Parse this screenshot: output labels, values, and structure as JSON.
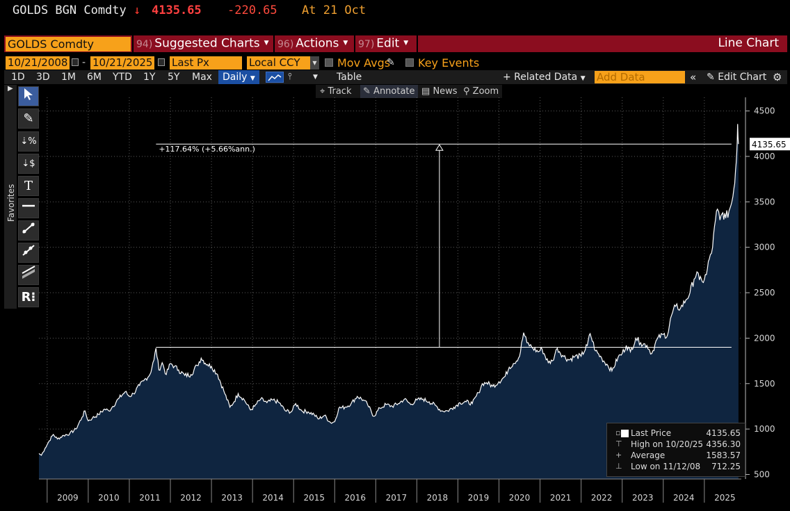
{
  "ticker": {
    "symbol": "GOLDS BGN Comdty",
    "arrow": "↓",
    "price": "4135.65",
    "change": "-220.65",
    "at": "At 21 Oct"
  },
  "menubar": {
    "security": "GOLDS Comdty",
    "menus": [
      {
        "num": "94)",
        "label": "Suggested Charts"
      },
      {
        "num": "96)",
        "label": "Actions"
      },
      {
        "num": "97)",
        "label": "Edit"
      }
    ],
    "chart_type": "Line Chart"
  },
  "daterow": {
    "start_date": "10/21/2008",
    "end_date": "10/21/2025",
    "field": "Last Px",
    "currency": "Local CCY",
    "mov_avgs": "Mov Avgs",
    "key_events": "Key Events"
  },
  "toolbar": {
    "periods": [
      "1D",
      "3D",
      "1M",
      "6M",
      "YTD",
      "1Y",
      "5Y",
      "Max"
    ],
    "frequency": "Daily",
    "table": "Table",
    "related_data": "+ Related Data",
    "add_data_placeholder": "Add Data",
    "edit_chart": "Edit Chart"
  },
  "subtoolbar": {
    "track": "Track",
    "annotate": "Annotate",
    "news": "News",
    "zoom": "Zoom"
  },
  "left_tools": {
    "favorites": "Favorites",
    "tools": [
      "pointer-icon",
      "pen-icon",
      "percent-measure-icon",
      "dollar-measure-icon",
      "text-icon",
      "horizontal-line-icon",
      "trend-line-icon",
      "ray-line-icon",
      "channel-icon",
      "retracement-icon"
    ]
  },
  "legend": {
    "last_price_label": "Last Price",
    "last_price_value": "4135.65",
    "high_label": "High on 10/20/25",
    "high_value": "4356.30",
    "average_label": "Average",
    "average_value": "1583.57",
    "low_label": "Low on 11/12/08",
    "low_value": "712.25"
  },
  "colors": {
    "accent_orange": "#f7a11a",
    "menu_red": "#8b0d1f",
    "down_red": "#ff4040",
    "area_fill": "#0f2540",
    "line": "#ffffff"
  },
  "chart_data": {
    "type": "area",
    "title": "",
    "xlabel": "",
    "ylabel": "",
    "ylim": [
      450,
      4650
    ],
    "yticks": [
      500,
      1000,
      1500,
      2000,
      2500,
      3000,
      3500,
      4000,
      4500
    ],
    "xlim": [
      2008.8,
      2025.9
    ],
    "xticks": [
      {
        "x": 2009.5,
        "label": "2009"
      },
      {
        "x": 2010.5,
        "label": "2010"
      },
      {
        "x": 2011.5,
        "label": "2011"
      },
      {
        "x": 2012.5,
        "label": "2012"
      },
      {
        "x": 2013.5,
        "label": "2013"
      },
      {
        "x": 2014.5,
        "label": "2014"
      },
      {
        "x": 2015.5,
        "label": "2015"
      },
      {
        "x": 2016.5,
        "label": "2016"
      },
      {
        "x": 2017.5,
        "label": "2017"
      },
      {
        "x": 2018.5,
        "label": "2018"
      },
      {
        "x": 2019.5,
        "label": "2019"
      },
      {
        "x": 2020.5,
        "label": "2020"
      },
      {
        "x": 2021.5,
        "label": "2021"
      },
      {
        "x": 2022.5,
        "label": "2022"
      },
      {
        "x": 2023.5,
        "label": "2023"
      },
      {
        "x": 2024.5,
        "label": "2024"
      },
      {
        "x": 2025.5,
        "label": "2025"
      }
    ],
    "last_price_label": "4135.65",
    "series": [
      {
        "name": "Last Price",
        "points": [
          [
            2008.8,
            730
          ],
          [
            2008.86,
            712
          ],
          [
            2008.95,
            790
          ],
          [
            2009.05,
            870
          ],
          [
            2009.15,
            940
          ],
          [
            2009.25,
            890
          ],
          [
            2009.4,
            930
          ],
          [
            2009.55,
            950
          ],
          [
            2009.7,
            1000
          ],
          [
            2009.85,
            1130
          ],
          [
            2009.92,
            1200
          ],
          [
            2010.0,
            1090
          ],
          [
            2010.1,
            1120
          ],
          [
            2010.25,
            1160
          ],
          [
            2010.4,
            1220
          ],
          [
            2010.5,
            1200
          ],
          [
            2010.6,
            1250
          ],
          [
            2010.75,
            1340
          ],
          [
            2010.9,
            1410
          ],
          [
            2011.0,
            1360
          ],
          [
            2011.1,
            1390
          ],
          [
            2011.25,
            1480
          ],
          [
            2011.35,
            1530
          ],
          [
            2011.5,
            1600
          ],
          [
            2011.6,
            1760
          ],
          [
            2011.65,
            1890
          ],
          [
            2011.72,
            1650
          ],
          [
            2011.8,
            1730
          ],
          [
            2011.9,
            1600
          ],
          [
            2012.0,
            1720
          ],
          [
            2012.1,
            1690
          ],
          [
            2012.2,
            1650
          ],
          [
            2012.35,
            1590
          ],
          [
            2012.5,
            1600
          ],
          [
            2012.65,
            1700
          ],
          [
            2012.75,
            1780
          ],
          [
            2012.9,
            1710
          ],
          [
            2013.0,
            1690
          ],
          [
            2013.15,
            1600
          ],
          [
            2013.3,
            1420
          ],
          [
            2013.45,
            1240
          ],
          [
            2013.55,
            1300
          ],
          [
            2013.65,
            1390
          ],
          [
            2013.8,
            1320
          ],
          [
            2013.95,
            1210
          ],
          [
            2014.05,
            1250
          ],
          [
            2014.2,
            1330
          ],
          [
            2014.35,
            1290
          ],
          [
            2014.5,
            1320
          ],
          [
            2014.65,
            1290
          ],
          [
            2014.8,
            1200
          ],
          [
            2014.95,
            1190
          ],
          [
            2015.05,
            1280
          ],
          [
            2015.2,
            1200
          ],
          [
            2015.35,
            1190
          ],
          [
            2015.5,
            1160
          ],
          [
            2015.6,
            1110
          ],
          [
            2015.75,
            1150
          ],
          [
            2015.9,
            1070
          ],
          [
            2016.0,
            1080
          ],
          [
            2016.1,
            1230
          ],
          [
            2016.25,
            1240
          ],
          [
            2016.4,
            1280
          ],
          [
            2016.55,
            1360
          ],
          [
            2016.7,
            1320
          ],
          [
            2016.8,
            1270
          ],
          [
            2016.95,
            1140
          ],
          [
            2017.1,
            1230
          ],
          [
            2017.25,
            1270
          ],
          [
            2017.4,
            1250
          ],
          [
            2017.55,
            1280
          ],
          [
            2017.7,
            1330
          ],
          [
            2017.85,
            1270
          ],
          [
            2018.0,
            1320
          ],
          [
            2018.15,
            1330
          ],
          [
            2018.3,
            1300
          ],
          [
            2018.45,
            1260
          ],
          [
            2018.6,
            1200
          ],
          [
            2018.75,
            1200
          ],
          [
            2018.9,
            1240
          ],
          [
            2019.05,
            1290
          ],
          [
            2019.2,
            1300
          ],
          [
            2019.35,
            1280
          ],
          [
            2019.5,
            1400
          ],
          [
            2019.6,
            1500
          ],
          [
            2019.7,
            1510
          ],
          [
            2019.85,
            1470
          ],
          [
            2020.0,
            1520
          ],
          [
            2020.15,
            1580
          ],
          [
            2020.25,
            1680
          ],
          [
            2020.35,
            1720
          ],
          [
            2020.5,
            1800
          ],
          [
            2020.6,
            2060
          ],
          [
            2020.68,
            1950
          ],
          [
            2020.8,
            1900
          ],
          [
            2020.95,
            1850
          ],
          [
            2021.05,
            1880
          ],
          [
            2021.2,
            1730
          ],
          [
            2021.3,
            1750
          ],
          [
            2021.42,
            1890
          ],
          [
            2021.55,
            1810
          ],
          [
            2021.7,
            1760
          ],
          [
            2021.85,
            1800
          ],
          [
            2022.0,
            1800
          ],
          [
            2022.15,
            1920
          ],
          [
            2022.22,
            2050
          ],
          [
            2022.35,
            1860
          ],
          [
            2022.5,
            1780
          ],
          [
            2022.65,
            1700
          ],
          [
            2022.75,
            1640
          ],
          [
            2022.9,
            1790
          ],
          [
            2023.0,
            1830
          ],
          [
            2023.1,
            1920
          ],
          [
            2023.2,
            1850
          ],
          [
            2023.33,
            2000
          ],
          [
            2023.45,
            1950
          ],
          [
            2023.6,
            1920
          ],
          [
            2023.72,
            1830
          ],
          [
            2023.85,
            1990
          ],
          [
            2024.0,
            2040
          ],
          [
            2024.1,
            2030
          ],
          [
            2024.2,
            2250
          ],
          [
            2024.3,
            2350
          ],
          [
            2024.42,
            2330
          ],
          [
            2024.55,
            2420
          ],
          [
            2024.65,
            2500
          ],
          [
            2024.75,
            2650
          ],
          [
            2024.82,
            2730
          ],
          [
            2024.88,
            2640
          ],
          [
            2024.95,
            2620
          ],
          [
            2025.05,
            2700
          ],
          [
            2025.12,
            2870
          ],
          [
            2025.2,
            3000
          ],
          [
            2025.27,
            3300
          ],
          [
            2025.32,
            3420
          ],
          [
            2025.38,
            3300
          ],
          [
            2025.45,
            3380
          ],
          [
            2025.52,
            3320
          ],
          [
            2025.6,
            3400
          ],
          [
            2025.67,
            3500
          ],
          [
            2025.72,
            3650
          ],
          [
            2025.76,
            3850
          ],
          [
            2025.79,
            4050
          ],
          [
            2025.81,
            4356
          ],
          [
            2025.83,
            4135.65
          ]
        ]
      }
    ],
    "annotation": {
      "text": "+117.64% (+5.66%ann.)",
      "start": [
        2011.65,
        1900
      ],
      "end": [
        2025.83,
        4135.65
      ],
      "arrow_x": 2018.55
    },
    "grid": true
  }
}
